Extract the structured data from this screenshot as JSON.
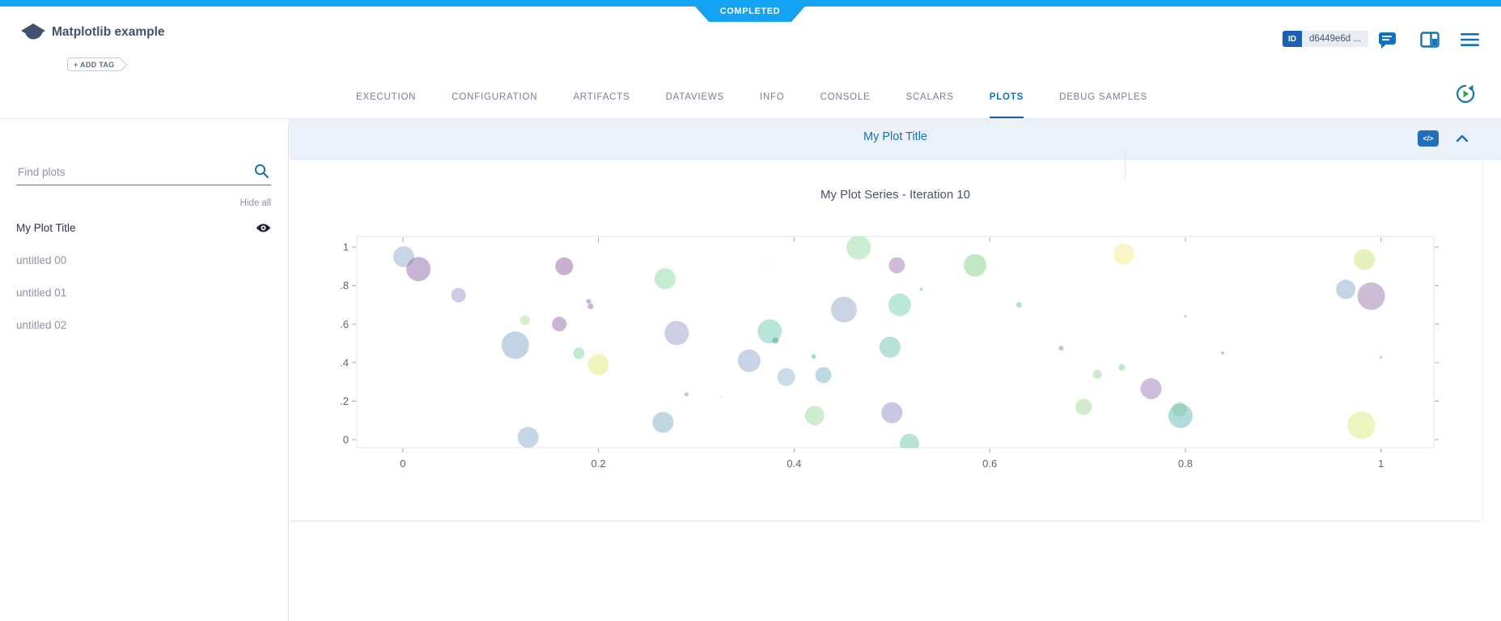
{
  "status_badge": "COMPLETED",
  "header": {
    "title": "Matplotlib example",
    "add_tag_label": "+ ADD TAG",
    "id_label": "ID",
    "id_value": "d6449e6d ...",
    "icons": [
      "comment-icon",
      "columns-icon",
      "menu-icon"
    ]
  },
  "tabs": [
    {
      "label": "EXECUTION",
      "active": false
    },
    {
      "label": "CONFIGURATION",
      "active": false
    },
    {
      "label": "ARTIFACTS",
      "active": false
    },
    {
      "label": "DATAVIEWS",
      "active": false
    },
    {
      "label": "INFO",
      "active": false
    },
    {
      "label": "CONSOLE",
      "active": false
    },
    {
      "label": "SCALARS",
      "active": false
    },
    {
      "label": "PLOTS",
      "active": true
    },
    {
      "label": "DEBUG SAMPLES",
      "active": false
    }
  ],
  "sidebar": {
    "search_placeholder": "Find plots",
    "hide_all_label": "Hide all",
    "items": [
      {
        "label": "My Plot Title",
        "active": true,
        "eye": true
      },
      {
        "label": "untitled 00",
        "active": false,
        "eye": false
      },
      {
        "label": "untitled 01",
        "active": false,
        "eye": false
      },
      {
        "label": "untitled 02",
        "active": false,
        "eye": false
      }
    ]
  },
  "panel": {
    "title": "My Plot Title",
    "code_button_label": "</>"
  },
  "colors": {
    "topbar_blue": "#14a2f3",
    "accent_blue": "#1473b8",
    "underline_blue": "#155bab",
    "header_bg": "#ecf0f9",
    "id_badge_bg": "#1b60b4"
  },
  "chart_data": {
    "type": "scatter",
    "title": "My Plot Series - Iteration 10",
    "xlabel": "",
    "ylabel": "",
    "xlim": [
      -0.047,
      1.054
    ],
    "ylim": [
      -0.042,
      1.055
    ],
    "xticks": [
      0,
      0.2,
      0.4,
      0.6,
      0.8,
      1
    ],
    "yticks": [
      0,
      0.2,
      0.4,
      0.6,
      0.8,
      1
    ],
    "grid": false,
    "legend": false,
    "marker_opacity": 0.55,
    "points": [
      {
        "x": 0.001,
        "y": 0.95,
        "r": 13,
        "c": "#9ab4cf"
      },
      {
        "x": 0.016,
        "y": 0.885,
        "r": 15,
        "c": "#9b79b4"
      },
      {
        "x": 0.057,
        "y": 0.75,
        "r": 9,
        "c": "#a6a0cd"
      },
      {
        "x": 0.125,
        "y": 0.62,
        "r": 6,
        "c": "#b2e39e"
      },
      {
        "x": 0.16,
        "y": 0.6,
        "r": 9,
        "c": "#a176ab"
      },
      {
        "x": 0.165,
        "y": 0.9,
        "r": 11,
        "c": "#9c6fae"
      },
      {
        "x": 0.19,
        "y": 0.718,
        "r": 3,
        "c": "#8a83c2"
      },
      {
        "x": 0.192,
        "y": 0.692,
        "r": 3.5,
        "c": "#a273ae"
      },
      {
        "x": 0.115,
        "y": 0.49,
        "r": 17,
        "c": "#8fafcd"
      },
      {
        "x": 0.18,
        "y": 0.448,
        "r": 7,
        "c": "#8ed9ae"
      },
      {
        "x": 0.2,
        "y": 0.39,
        "r": 13,
        "c": "#e3ec83"
      },
      {
        "x": 0.128,
        "y": 0.012,
        "r": 13,
        "c": "#96b4d1"
      },
      {
        "x": 0.268,
        "y": 0.835,
        "r": 13,
        "c": "#96dcaa"
      },
      {
        "x": 0.28,
        "y": 0.553,
        "r": 15,
        "c": "#a3a7d0"
      },
      {
        "x": 0.266,
        "y": 0.09,
        "r": 13,
        "c": "#8cb6c9"
      },
      {
        "x": 0.29,
        "y": 0.235,
        "r": 2.5,
        "c": "#968fc6"
      },
      {
        "x": 0.325,
        "y": 0.222,
        "r": 2,
        "c": "#e9f0a2"
      },
      {
        "x": 0.37,
        "y": 0.91,
        "r": 2,
        "c": "#f2f4b3"
      },
      {
        "x": 0.375,
        "y": 0.562,
        "r": 15,
        "c": "#7ed3bb"
      },
      {
        "x": 0.381,
        "y": 0.515,
        "r": 4,
        "c": "#4aa8a2"
      },
      {
        "x": 0.354,
        "y": 0.41,
        "r": 14,
        "c": "#9cafd1"
      },
      {
        "x": 0.392,
        "y": 0.325,
        "r": 11,
        "c": "#9cc0d8"
      },
      {
        "x": 0.43,
        "y": 0.335,
        "r": 10,
        "c": "#8cb8c8"
      },
      {
        "x": 0.42,
        "y": 0.432,
        "r": 3,
        "c": "#5fc2b1"
      },
      {
        "x": 0.421,
        "y": 0.125,
        "r": 12,
        "c": "#a3dfa6"
      },
      {
        "x": 0.466,
        "y": 0.998,
        "r": 15,
        "c": "#9fe0a7"
      },
      {
        "x": 0.451,
        "y": 0.675,
        "r": 16,
        "c": "#9cb3d0"
      },
      {
        "x": 0.505,
        "y": 0.905,
        "r": 10,
        "c": "#a483b8"
      },
      {
        "x": 0.508,
        "y": 0.7,
        "r": 14,
        "c": "#83d5b7"
      },
      {
        "x": 0.498,
        "y": 0.48,
        "r": 13,
        "c": "#7ecbb7"
      },
      {
        "x": 0.5,
        "y": 0.14,
        "r": 13,
        "c": "#989cc9"
      },
      {
        "x": 0.518,
        "y": -0.02,
        "r": 12,
        "c": "#7eccb3"
      },
      {
        "x": 0.53,
        "y": 0.78,
        "r": 2,
        "c": "#6cc7a7"
      },
      {
        "x": 0.585,
        "y": 0.905,
        "r": 14,
        "c": "#93d593"
      },
      {
        "x": 0.63,
        "y": 0.7,
        "r": 3.5,
        "c": "#7ccf9e"
      },
      {
        "x": 0.673,
        "y": 0.475,
        "r": 3,
        "c": "#9a8dc5"
      },
      {
        "x": 0.71,
        "y": 0.34,
        "r": 5.5,
        "c": "#9fdc98"
      },
      {
        "x": 0.735,
        "y": 0.375,
        "r": 4,
        "c": "#8dd491"
      },
      {
        "x": 0.765,
        "y": 0.265,
        "r": 13,
        "c": "#a886bf"
      },
      {
        "x": 0.696,
        "y": 0.17,
        "r": 10,
        "c": "#a8de9d"
      },
      {
        "x": 0.794,
        "y": 0.158,
        "r": 9,
        "c": "#9cd78c"
      },
      {
        "x": 0.795,
        "y": 0.123,
        "r": 15,
        "c": "#74bdc3"
      },
      {
        "x": 0.8,
        "y": 0.64,
        "r": 1.5,
        "c": "#9d85b7"
      },
      {
        "x": 0.838,
        "y": 0.45,
        "r": 2,
        "c": "#978ec7"
      },
      {
        "x": 0.737,
        "y": 0.963,
        "r": 13,
        "c": "#f6ee9c"
      },
      {
        "x": 0.983,
        "y": 0.935,
        "r": 13,
        "c": "#cde88d"
      },
      {
        "x": 0.964,
        "y": 0.78,
        "r": 12,
        "c": "#94b2d3"
      },
      {
        "x": 0.99,
        "y": 0.745,
        "r": 17,
        "c": "#a282b4"
      },
      {
        "x": 0.98,
        "y": 0.075,
        "r": 17,
        "c": "#dcec88"
      },
      {
        "x": 1.0,
        "y": 0.428,
        "r": 2,
        "c": "#7cceae"
      }
    ]
  }
}
